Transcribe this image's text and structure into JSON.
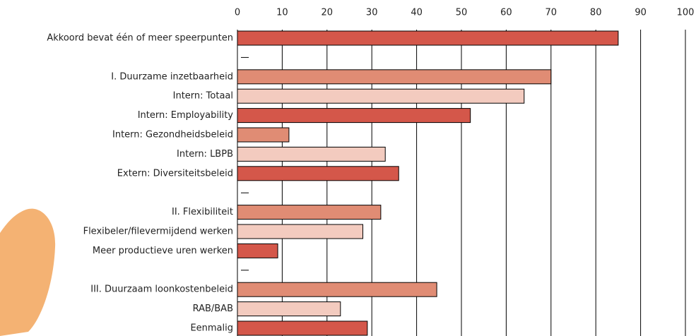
{
  "chart_data": {
    "type": "hbar",
    "categories": [
      "Akkoord bevat één of meer speerpunten",
      null,
      "I. Duurzame inzetbaarheid",
      "Intern: Totaal",
      "Intern: Employability",
      "Intern: Gezondheidsbeleid",
      "Intern: LBPB",
      "Extern: Diversiteitsbeleid",
      null,
      "II. Flexibiliteit",
      "Flexibeler/filevermijdend werken",
      "Meer productieve uren werken",
      null,
      "III. Duurzaam loonkostenbeleid",
      "RAB/BAB",
      "Eenmalig"
    ],
    "values": [
      85,
      null,
      70,
      64,
      52,
      11.5,
      33,
      36,
      null,
      32,
      28,
      9,
      null,
      44.5,
      23,
      29
    ],
    "colors": [
      "#d4574a",
      null,
      "#e08c74",
      "#f3cbbf",
      "#d4574a",
      "#e08c74",
      "#f3cbbf",
      "#d4574a",
      null,
      "#e08c74",
      "#f3cbbf",
      "#d4574a",
      null,
      "#e08c74",
      "#f3cbbf",
      "#d4574a"
    ],
    "xlim": [
      0,
      100
    ],
    "xticks": [
      0,
      10,
      20,
      30,
      40,
      50,
      60,
      70,
      80,
      90,
      100
    ],
    "grid": true
  }
}
